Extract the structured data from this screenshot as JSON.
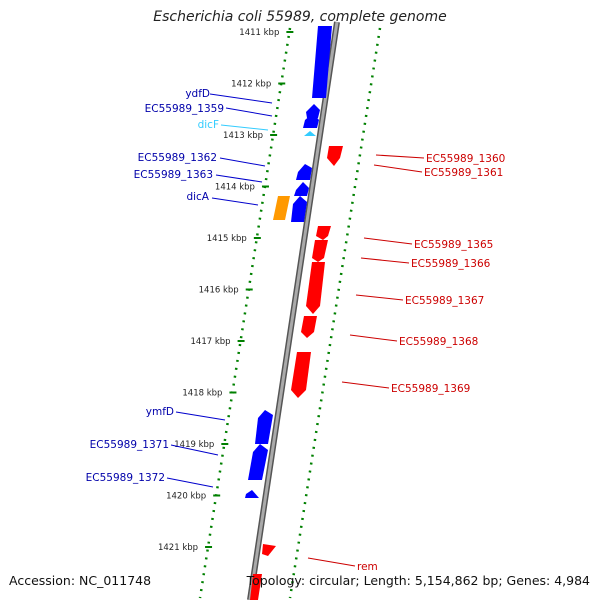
{
  "title": "Escherichia coli 55989, complete genome",
  "footer": {
    "accession": "Accession: NC_011748",
    "info": "Topology: circular; Length: 5,154,862 bp; Genes: 4,984"
  },
  "colors": {
    "forward_gene": "#0000ff",
    "reverse_gene": "#ff0000",
    "rna_gene": "#33ccff",
    "highlight_gene": "#ff9900",
    "tick": "#008000",
    "backbone": "#808080"
  },
  "ticks": [
    "1411 kbp",
    "1412 kbp",
    "1413 kbp",
    "1414 kbp",
    "1415 kbp",
    "1416 kbp",
    "1417 kbp",
    "1418 kbp",
    "1419 kbp",
    "1420 kbp",
    "1421 kbp"
  ],
  "left_labels": [
    "ydfD",
    "EC55989_1359",
    "dicF",
    "EC55989_1362",
    "EC55989_1363",
    "dicA",
    "ymfD",
    "EC55989_1371",
    "EC55989_1372"
  ],
  "right_labels": [
    "EC55989_1360",
    "EC55989_1361",
    "EC55989_1365",
    "EC55989_1366",
    "EC55989_1367",
    "EC55989_1368",
    "EC55989_1369",
    "rem"
  ]
}
